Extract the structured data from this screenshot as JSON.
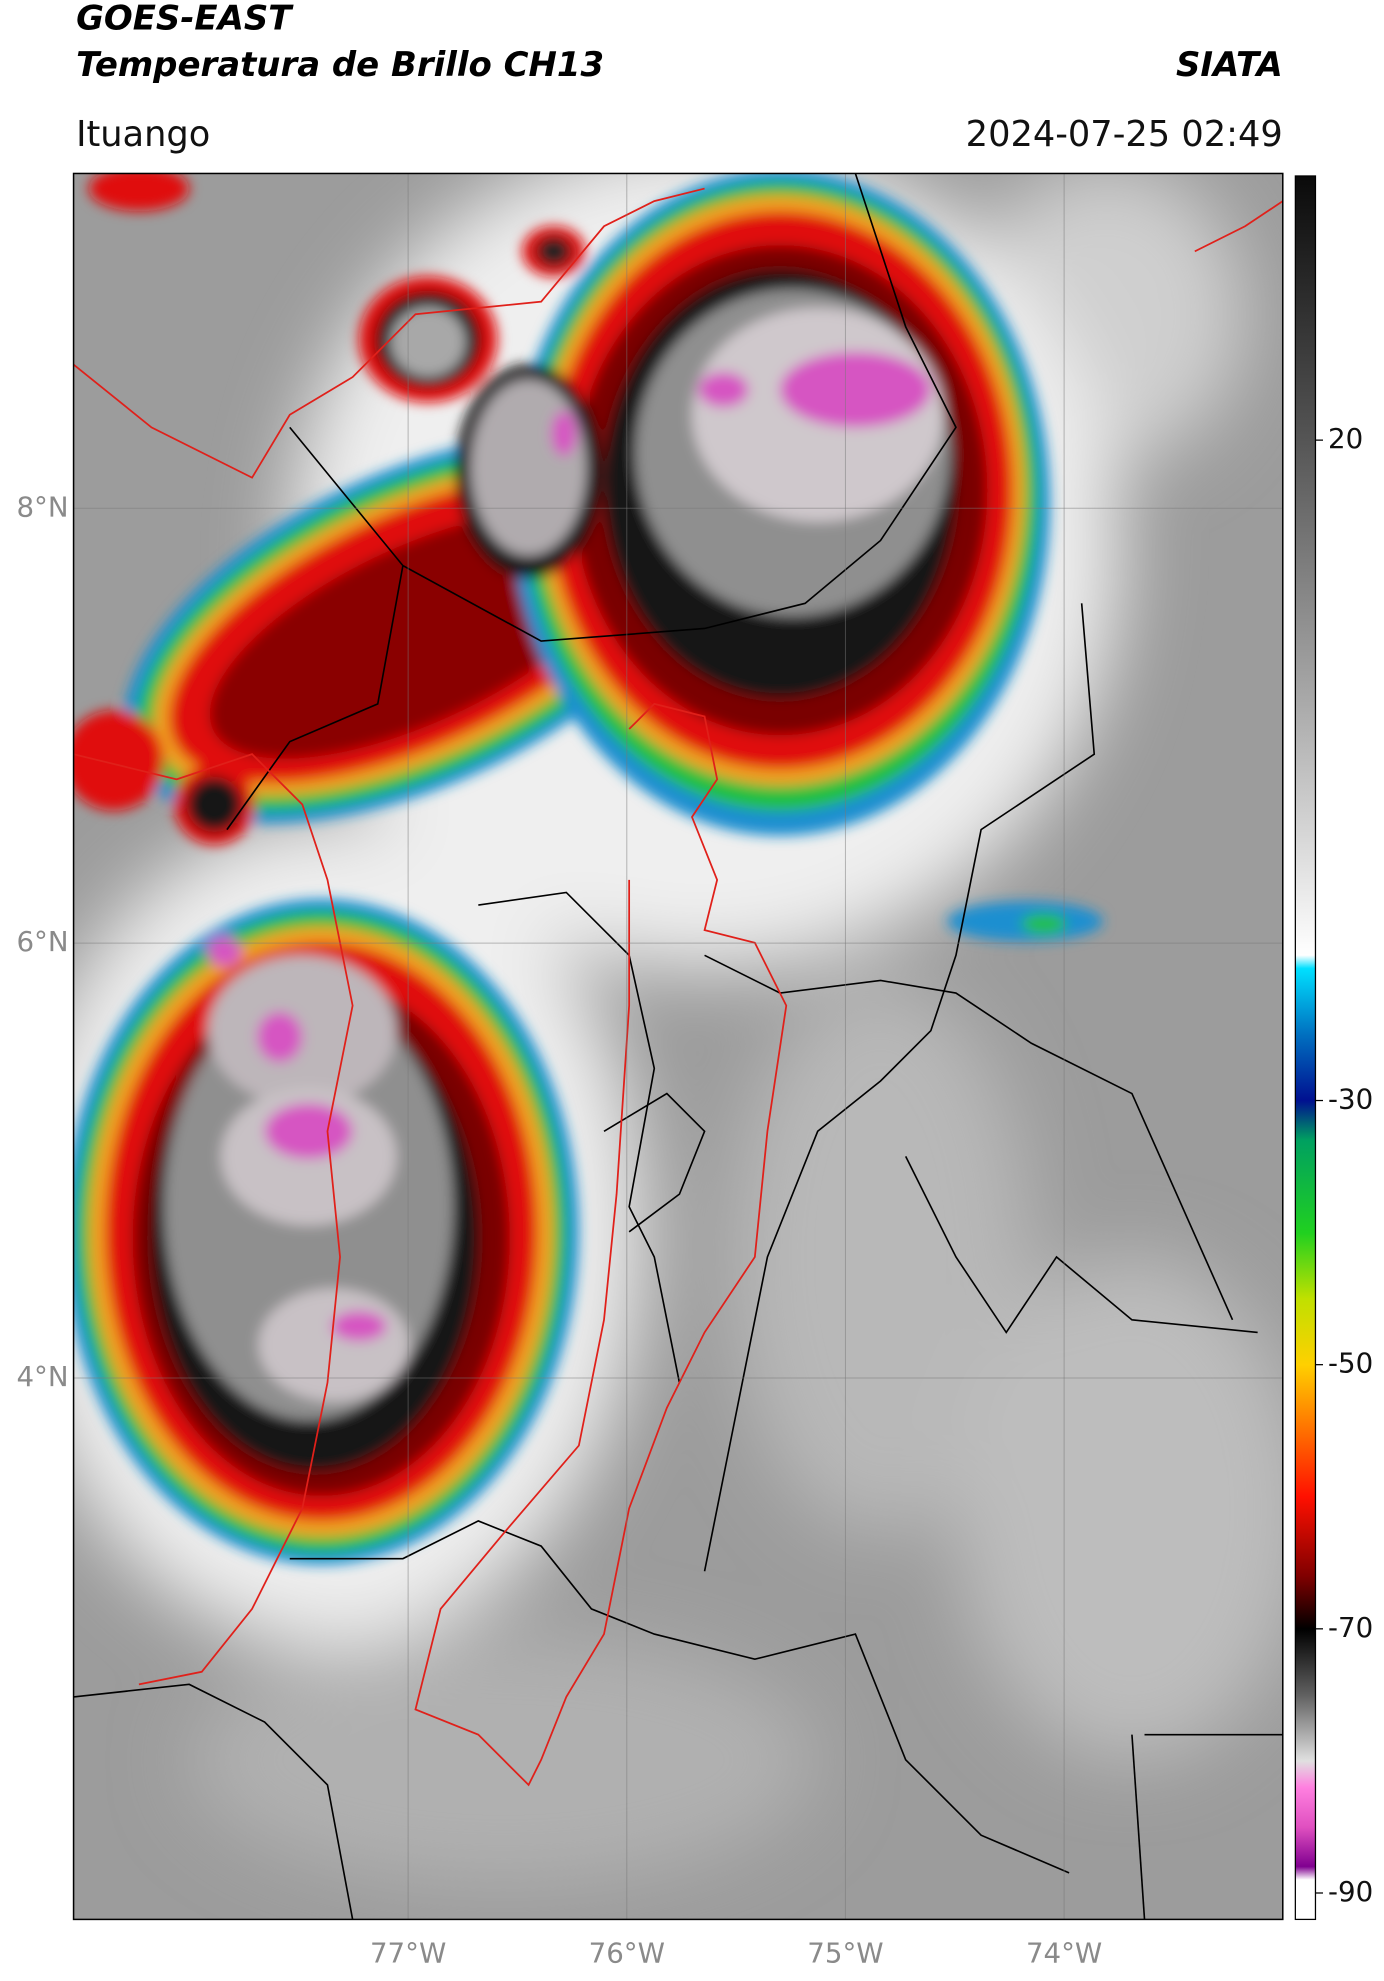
{
  "header": {
    "title": "GOES-EAST",
    "subtitle": "Temperatura de Brillo CH13",
    "agency": "SIATA",
    "location": "Ituango",
    "datetime": "2024-07-25 02:49"
  },
  "map": {
    "xlim": [
      -78.53,
      -73.0
    ],
    "ylim": [
      1.51,
      9.54
    ],
    "xticks": [
      {
        "value": -77,
        "label": "77°W"
      },
      {
        "value": -76,
        "label": "76°W"
      },
      {
        "value": -75,
        "label": "75°W"
      },
      {
        "value": -74,
        "label": "74°W"
      }
    ],
    "yticks": [
      {
        "value": 8,
        "label": "8°N"
      },
      {
        "value": 6,
        "label": "6°N"
      },
      {
        "value": 4,
        "label": "4°N"
      }
    ],
    "grid": true
  },
  "colorbar": {
    "lim": [
      -92,
      40
    ],
    "ticks": [
      20,
      -30,
      -50,
      -70,
      -90
    ],
    "colormap": [
      {
        "value": 40,
        "color": "#0a0a0a"
      },
      {
        "value": 20,
        "color": "#555555"
      },
      {
        "value": 0,
        "color": "#aaaaaa"
      },
      {
        "value": -19,
        "color": "#ffffff"
      },
      {
        "value": -20,
        "color": "#00e0ff"
      },
      {
        "value": -25,
        "color": "#0070c0"
      },
      {
        "value": -30,
        "color": "#001090"
      },
      {
        "value": -33,
        "color": "#00a060"
      },
      {
        "value": -40,
        "color": "#20d020"
      },
      {
        "value": -45,
        "color": "#c0e000"
      },
      {
        "value": -50,
        "color": "#ffd000"
      },
      {
        "value": -55,
        "color": "#ff7000"
      },
      {
        "value": -60,
        "color": "#ff1000"
      },
      {
        "value": -66,
        "color": "#800000"
      },
      {
        "value": -70,
        "color": "#000000"
      },
      {
        "value": -75,
        "color": "#606060"
      },
      {
        "value": -80,
        "color": "#e0e0e0"
      },
      {
        "value": -82,
        "color": "#ff80e0"
      },
      {
        "value": -85,
        "color": "#e050c0"
      },
      {
        "value": -88,
        "color": "#800090"
      },
      {
        "value": -89,
        "color": "#ffffff"
      },
      {
        "value": -92,
        "color": "#ffffff"
      }
    ]
  }
}
